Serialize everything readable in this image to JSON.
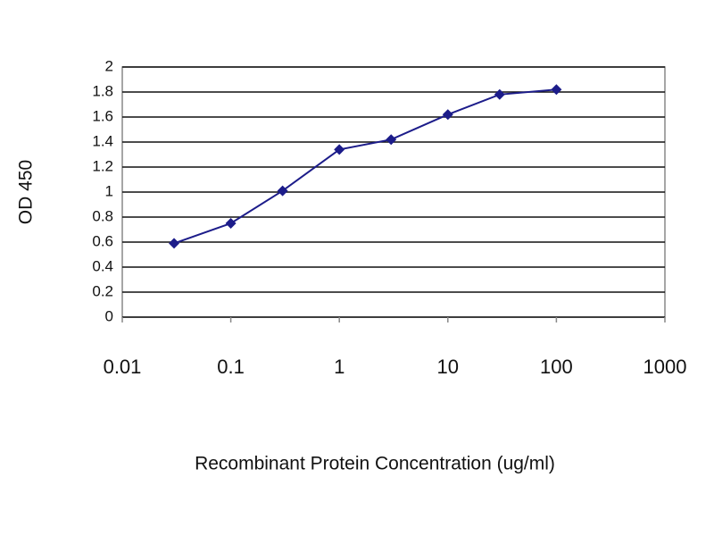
{
  "chart_data": {
    "type": "line",
    "x_label": "Recombinant Protein Concentration (ug/ml)",
    "y_label": "OD 450",
    "x": [
      0.03,
      0.1,
      0.3,
      1,
      3,
      10,
      30,
      100
    ],
    "series": [
      {
        "color": "#1c1c8a",
        "values": [
          0.59,
          0.75,
          1.01,
          1.34,
          1.42,
          1.62,
          1.78,
          1.82
        ]
      }
    ],
    "xlim": [
      0.01,
      1000
    ],
    "xticks": [
      0.01,
      0.1,
      1,
      10,
      100,
      1000
    ],
    "xscale": "log",
    "ylim": [
      0,
      2
    ],
    "yticks": [
      0,
      0.2,
      0.4,
      0.6,
      0.8,
      1,
      1.2,
      1.4,
      1.6,
      1.8,
      2
    ],
    "grid": true
  }
}
